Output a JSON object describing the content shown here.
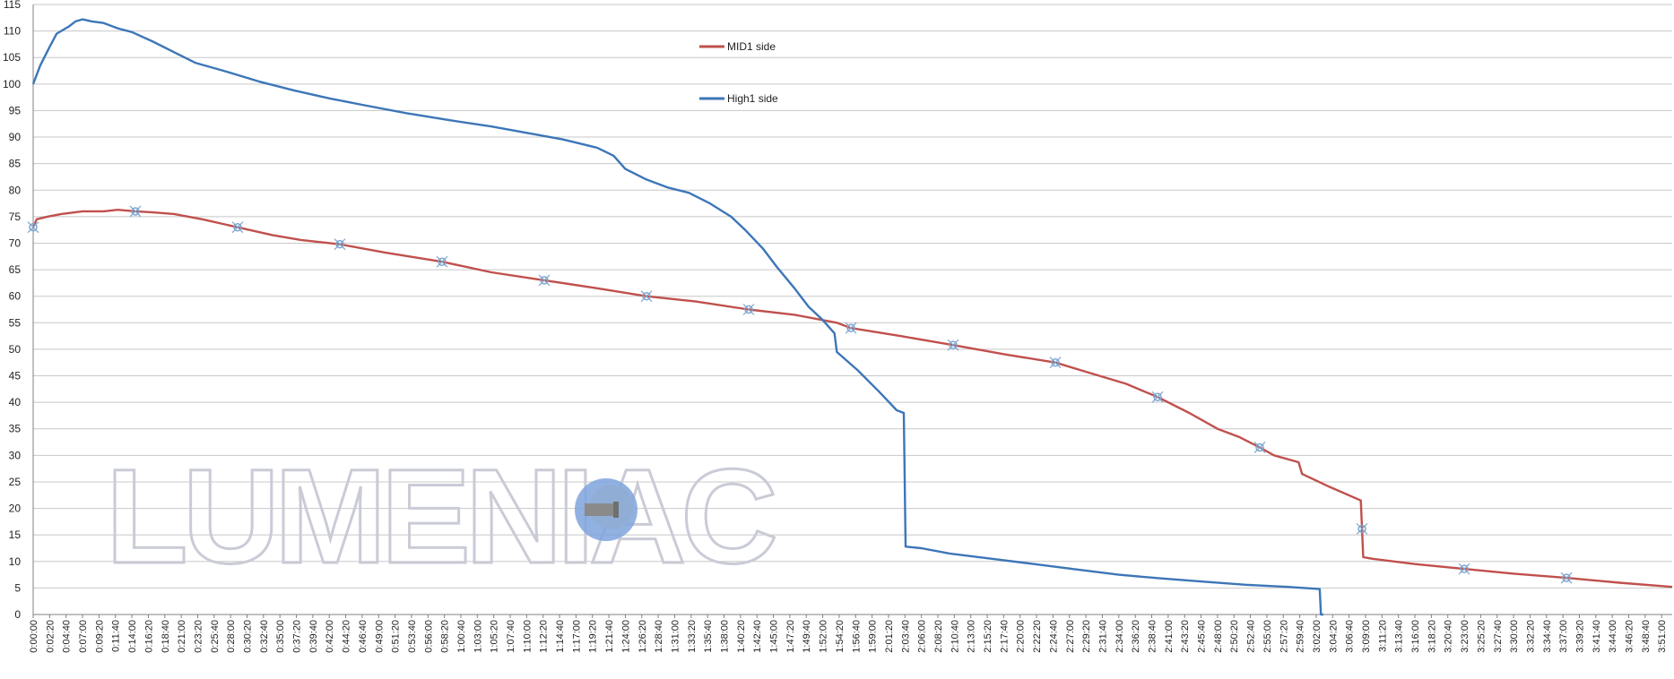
{
  "watermark": {
    "text": "LUMENIAC"
  },
  "colors": {
    "mid1": "#c0504d",
    "high1": "#3c76b8",
    "grid": "#c8c8c8",
    "axis": "#808080",
    "marker": "#7ea6cf",
    "watermark": "#c9cbd6",
    "lamp_blue": "#7fa3de",
    "lamp_yellow": "#f2e8a0"
  },
  "chart_data": {
    "type": "line",
    "title": "",
    "xlabel": "",
    "ylabel": "",
    "x_unit": "elapsed time (h:mm:ss)",
    "xlim": [
      "0:00:00",
      "3:52:30"
    ],
    "ylim": [
      0,
      115
    ],
    "yticks": [
      0,
      5,
      10,
      15,
      20,
      25,
      30,
      35,
      40,
      45,
      50,
      55,
      60,
      65,
      70,
      75,
      80,
      85,
      90,
      95,
      100,
      105,
      110,
      115
    ],
    "xtick_labels": [
      "0:00:00",
      "0:02:20",
      "0:04:40",
      "0:07:00",
      "0:09:20",
      "0:11:40",
      "0:14:00",
      "0:16:20",
      "0:18:40",
      "0:21:00",
      "0:23:20",
      "0:25:40",
      "0:28:00",
      "0:30:20",
      "0:32:40",
      "0:35:00",
      "0:37:20",
      "0:39:40",
      "0:42:00",
      "0:44:20",
      "0:46:40",
      "0:49:00",
      "0:51:20",
      "0:53:40",
      "0:56:00",
      "0:58:20",
      "1:00:40",
      "1:03:00",
      "1:05:20",
      "1:07:40",
      "1:10:00",
      "1:12:20",
      "1:14:40",
      "1:17:00",
      "1:19:20",
      "1:21:40",
      "1:24:00",
      "1:26:20",
      "1:28:40",
      "1:31:00",
      "1:33:20",
      "1:35:40",
      "1:38:00",
      "1:40:20",
      "1:42:40",
      "1:45:00",
      "1:47:20",
      "1:49:40",
      "1:52:00",
      "1:54:20",
      "1:56:40",
      "1:59:00",
      "2:01:20",
      "2:03:40",
      "2:06:00",
      "2:08:20",
      "2:10:40",
      "2:13:00",
      "2:15:20",
      "2:17:40",
      "2:20:00",
      "2:22:20",
      "2:24:40",
      "2:27:00",
      "2:29:20",
      "2:31:40",
      "2:34:00",
      "2:36:20",
      "2:38:40",
      "2:41:00",
      "2:43:20",
      "2:45:40",
      "2:48:00",
      "2:50:20",
      "2:52:40",
      "2:55:00",
      "2:57:20",
      "2:59:40",
      "3:02:00",
      "3:04:20",
      "3:06:40",
      "3:09:00",
      "3:11:20",
      "3:13:40",
      "3:16:00",
      "3:18:20",
      "3:20:40",
      "3:23:00",
      "3:25:20",
      "3:27:40",
      "3:30:00",
      "3:32:20",
      "3:34:40",
      "3:37:00",
      "3:39:20",
      "3:41:40",
      "3:44:00",
      "3:46:20",
      "3:48:40",
      "3:51:00"
    ],
    "grid": true,
    "legend_position": "top-center",
    "series": [
      {
        "name": "MID1 side",
        "color": "#c0504d",
        "marker_style": "open-circle-cross",
        "markers_x": [
          "0:00:00",
          "0:14:30",
          "0:29:00",
          "0:43:30",
          "0:58:00",
          "1:12:30",
          "1:27:00",
          "1:41:30",
          "1:56:00",
          "2:10:30",
          "2:25:00",
          "2:39:30",
          "2:54:00",
          "3:08:30",
          "3:23:00",
          "3:37:30"
        ],
        "points": [
          [
            "0:00:00",
            73
          ],
          [
            "0:00:30",
            74.5
          ],
          [
            "0:02:00",
            75
          ],
          [
            "0:04:00",
            75.5
          ],
          [
            "0:07:00",
            76
          ],
          [
            "0:10:00",
            76
          ],
          [
            "0:12:00",
            76.3
          ],
          [
            "0:14:30",
            76
          ],
          [
            "0:17:00",
            75.8
          ],
          [
            "0:20:00",
            75.5
          ],
          [
            "0:24:00",
            74.5
          ],
          [
            "0:29:00",
            73
          ],
          [
            "0:34:00",
            71.5
          ],
          [
            "0:38:00",
            70.6
          ],
          [
            "0:43:30",
            69.8
          ],
          [
            "0:50:00",
            68.2
          ],
          [
            "0:58:00",
            66.5
          ],
          [
            "1:05:00",
            64.5
          ],
          [
            "1:12:30",
            63
          ],
          [
            "1:20:00",
            61.5
          ],
          [
            "1:27:00",
            60
          ],
          [
            "1:34:00",
            59
          ],
          [
            "1:41:30",
            57.5
          ],
          [
            "1:48:00",
            56.5
          ],
          [
            "1:54:00",
            55
          ],
          [
            "1:56:00",
            54
          ],
          [
            "2:03:00",
            52.5
          ],
          [
            "2:10:30",
            50.8
          ],
          [
            "2:18:00",
            49
          ],
          [
            "2:25:00",
            47.5
          ],
          [
            "2:30:00",
            45.5
          ],
          [
            "2:35:00",
            43.5
          ],
          [
            "2:39:30",
            41
          ],
          [
            "2:44:00",
            38
          ],
          [
            "2:48:00",
            35
          ],
          [
            "2:51:00",
            33.5
          ],
          [
            "2:54:00",
            31.5
          ],
          [
            "2:56:00",
            30
          ],
          [
            "2:59:30",
            28.7
          ],
          [
            "3:00:00",
            26.5
          ],
          [
            "3:04:00",
            24
          ],
          [
            "3:08:20",
            21.5
          ],
          [
            "3:08:40",
            10.8
          ],
          [
            "3:10:00",
            10.5
          ],
          [
            "3:16:00",
            9.5
          ],
          [
            "3:23:00",
            8.6
          ],
          [
            "3:30:00",
            7.7
          ],
          [
            "3:37:30",
            6.9
          ],
          [
            "3:45:00",
            6
          ],
          [
            "3:52:30",
            5.2
          ]
        ]
      },
      {
        "name": "High1 side",
        "color": "#3c76b8",
        "points": [
          [
            "0:00:00",
            100
          ],
          [
            "0:01:00",
            103.5
          ],
          [
            "0:02:20",
            107
          ],
          [
            "0:03:20",
            109.5
          ],
          [
            "0:05:00",
            110.8
          ],
          [
            "0:06:00",
            111.8
          ],
          [
            "0:07:00",
            112.2
          ],
          [
            "0:08:20",
            111.8
          ],
          [
            "0:10:00",
            111.5
          ],
          [
            "0:12:00",
            110.5
          ],
          [
            "0:14:00",
            109.8
          ],
          [
            "0:17:00",
            108
          ],
          [
            "0:20:00",
            106
          ],
          [
            "0:23:00",
            104
          ],
          [
            "0:27:00",
            102.5
          ],
          [
            "0:32:00",
            100.5
          ],
          [
            "0:37:00",
            98.8
          ],
          [
            "0:42:00",
            97.3
          ],
          [
            "0:47:00",
            96
          ],
          [
            "0:53:00",
            94.5
          ],
          [
            "0:59:00",
            93.2
          ],
          [
            "1:05:00",
            92
          ],
          [
            "1:10:00",
            90.8
          ],
          [
            "1:15:00",
            89.6
          ],
          [
            "1:20:00",
            88
          ],
          [
            "1:22:20",
            86.5
          ],
          [
            "1:24:00",
            84
          ],
          [
            "1:27:00",
            82
          ],
          [
            "1:30:00",
            80.5
          ],
          [
            "1:33:00",
            79.5
          ],
          [
            "1:36:00",
            77.5
          ],
          [
            "1:39:00",
            75
          ],
          [
            "1:41:00",
            72.5
          ],
          [
            "1:43:30",
            69
          ],
          [
            "1:45:30",
            65.5
          ],
          [
            "1:48:00",
            61.5
          ],
          [
            "1:50:00",
            58
          ],
          [
            "1:52:00",
            55.5
          ],
          [
            "1:53:40",
            53
          ],
          [
            "1:54:00",
            49.5
          ],
          [
            "1:57:00",
            46
          ],
          [
            "2:00:00",
            42
          ],
          [
            "2:02:30",
            38.5
          ],
          [
            "2:03:30",
            38
          ],
          [
            "2:03:45",
            12.8
          ],
          [
            "2:06:00",
            12.5
          ],
          [
            "2:10:00",
            11.5
          ],
          [
            "2:16:00",
            10.5
          ],
          [
            "2:22:00",
            9.5
          ],
          [
            "2:28:00",
            8.5
          ],
          [
            "2:34:00",
            7.5
          ],
          [
            "2:40:00",
            6.8
          ],
          [
            "2:46:00",
            6.2
          ],
          [
            "2:52:00",
            5.6
          ],
          [
            "2:58:00",
            5.2
          ],
          [
            "3:02:30",
            4.8
          ],
          [
            "3:02:40",
            0
          ],
          [
            "3:03:00",
            0
          ]
        ]
      }
    ]
  }
}
